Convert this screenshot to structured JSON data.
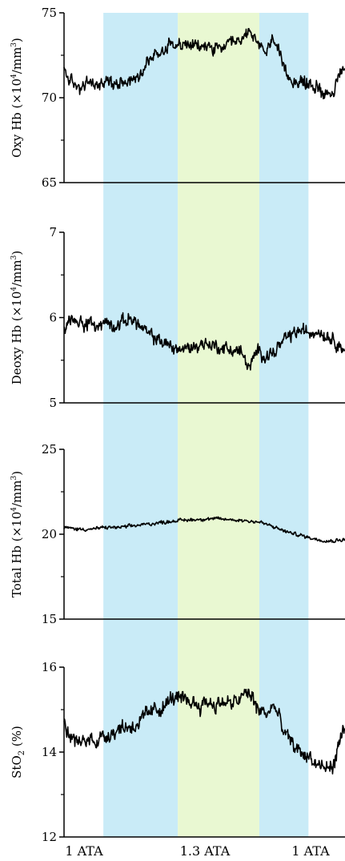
{
  "colors": {
    "phase_1ata": "#c9ebf7",
    "phase_13ata": "#e9f8d2",
    "trace": "#000000"
  },
  "x_phase_labels": [
    "1 ATA",
    "1.3 ATA",
    "1 ATA"
  ],
  "chart_data": [
    {
      "type": "line",
      "ylabel": {
        "main": "Oxy Hb (×10",
        "sup": "4",
        "mid": "/mm",
        "sup2": "3",
        "end": ")"
      },
      "ylim": [
        65,
        75
      ],
      "yticks": [
        65,
        70,
        75
      ],
      "yminor": [
        67.5,
        72.5
      ],
      "x": [
        0,
        0.03,
        0.06,
        0.09,
        0.12,
        0.15,
        0.18,
        0.21,
        0.24,
        0.27,
        0.3,
        0.33,
        0.36,
        0.39,
        0.42,
        0.45,
        0.48,
        0.51,
        0.54,
        0.57,
        0.6,
        0.63,
        0.66,
        0.69,
        0.72,
        0.75,
        0.78,
        0.81,
        0.84,
        0.87,
        0.9,
        0.93,
        0.96,
        1.0
      ],
      "values": [
        71.6,
        70.8,
        70.6,
        70.9,
        70.7,
        71.0,
        70.8,
        71.1,
        71.0,
        71.4,
        72.2,
        72.6,
        72.9,
        73.4,
        73.0,
        73.2,
        72.9,
        73.1,
        72.8,
        73.0,
        73.1,
        73.3,
        74.1,
        73.0,
        72.7,
        73.6,
        71.6,
        71.1,
        70.9,
        70.8,
        70.6,
        70.3,
        70.4,
        71.9
      ],
      "noise": 0.45
    },
    {
      "type": "line",
      "ylabel": {
        "main": "Deoxy Hb (×10",
        "sup": "4",
        "mid": "/mm",
        "sup2": "3",
        "end": ")"
      },
      "ylim": [
        5,
        7
      ],
      "yticks": [
        5,
        6,
        7
      ],
      "yminor": [
        5.5,
        6.5
      ],
      "x": [
        0,
        0.03,
        0.06,
        0.09,
        0.12,
        0.15,
        0.18,
        0.21,
        0.24,
        0.27,
        0.3,
        0.33,
        0.36,
        0.39,
        0.42,
        0.45,
        0.48,
        0.51,
        0.54,
        0.57,
        0.6,
        0.63,
        0.66,
        0.69,
        0.72,
        0.75,
        0.78,
        0.81,
        0.84,
        0.87,
        0.9,
        0.93,
        0.96,
        1.0
      ],
      "values": [
        5.85,
        6.0,
        5.95,
        5.92,
        5.9,
        5.95,
        5.9,
        5.95,
        6.0,
        5.9,
        5.8,
        5.75,
        5.7,
        5.65,
        5.62,
        5.65,
        5.68,
        5.7,
        5.66,
        5.64,
        5.62,
        5.6,
        5.4,
        5.62,
        5.55,
        5.6,
        5.72,
        5.8,
        5.85,
        5.82,
        5.85,
        5.8,
        5.75,
        5.6
      ],
      "noise": 0.09
    },
    {
      "type": "line",
      "ylabel": {
        "main": "Total Hb (×10",
        "sup": "4",
        "mid": "/mm",
        "sup2": "3",
        "end": ")"
      },
      "ylim": [
        15,
        25
      ],
      "yticks": [
        15,
        20,
        25
      ],
      "yminor": [
        17.5,
        22.5
      ],
      "x": [
        0,
        0.05,
        0.1,
        0.15,
        0.2,
        0.25,
        0.3,
        0.35,
        0.4,
        0.45,
        0.5,
        0.55,
        0.6,
        0.65,
        0.7,
        0.75,
        0.8,
        0.85,
        0.9,
        0.95,
        1.0
      ],
      "values": [
        20.4,
        20.3,
        20.3,
        20.4,
        20.4,
        20.5,
        20.6,
        20.7,
        20.8,
        20.85,
        20.9,
        20.9,
        20.85,
        20.8,
        20.7,
        20.4,
        20.1,
        19.9,
        19.7,
        19.6,
        19.7
      ],
      "noise": 0.12
    },
    {
      "type": "line",
      "ylabel": {
        "main": "StO",
        "sub": "2",
        "end": " (%)"
      },
      "ylim": [
        12,
        16
      ],
      "yticks": [
        12,
        14,
        16
      ],
      "yminor": [
        13,
        15
      ],
      "x": [
        0,
        0.03,
        0.06,
        0.09,
        0.12,
        0.15,
        0.18,
        0.21,
        0.24,
        0.27,
        0.3,
        0.33,
        0.36,
        0.39,
        0.42,
        0.45,
        0.48,
        0.51,
        0.54,
        0.57,
        0.6,
        0.63,
        0.66,
        0.69,
        0.72,
        0.75,
        0.78,
        0.81,
        0.84,
        0.87,
        0.9,
        0.93,
        0.96,
        1.0
      ],
      "values": [
        14.6,
        14.3,
        14.2,
        14.3,
        14.3,
        14.4,
        14.5,
        14.6,
        14.6,
        14.7,
        14.9,
        15.0,
        15.1,
        15.3,
        15.2,
        15.2,
        15.1,
        15.2,
        15.1,
        15.2,
        15.1,
        15.3,
        15.4,
        15.0,
        14.9,
        15.1,
        14.5,
        14.2,
        14.0,
        13.9,
        13.7,
        13.6,
        13.7,
        14.7
      ],
      "noise": 0.22
    }
  ],
  "phases": [
    {
      "start": 0.0,
      "end": 0.14,
      "kind": "none"
    },
    {
      "start": 0.14,
      "end": 0.405,
      "kind": "phase_1ata"
    },
    {
      "start": 0.405,
      "end": 0.695,
      "kind": "phase_13ata"
    },
    {
      "start": 0.695,
      "end": 0.87,
      "kind": "phase_1ata"
    }
  ]
}
